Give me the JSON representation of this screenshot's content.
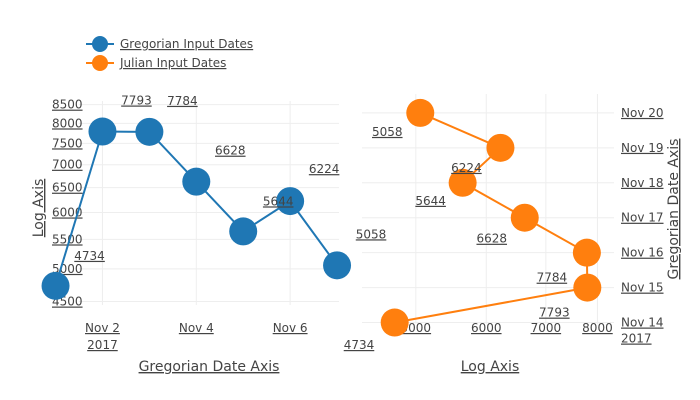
{
  "legend": {
    "items": [
      {
        "label": "Gregorian Input Dates",
        "color": "#1f77b4"
      },
      {
        "label": "Julian Input Dates",
        "color": "#ff7f0e"
      }
    ]
  },
  "chart_data": [
    {
      "type": "line",
      "xlabel": "Gregorian Date Axis",
      "ylabel": "Log Axis",
      "x_scale": "date",
      "y_scale": "log",
      "x_range": [
        "2017-11-01 12:00",
        "2017-11-07 01:00"
      ],
      "y_range": [
        4450,
        8600
      ],
      "x_ticks": [
        {
          "value": "2017-11-02",
          "label": "Nov 2",
          "label2": "2017"
        },
        {
          "value": "2017-11-04",
          "label": "Nov 4"
        },
        {
          "value": "2017-11-06",
          "label": "Nov 6"
        }
      ],
      "y_ticks": [
        4500,
        5000,
        5500,
        6000,
        6500,
        7000,
        7500,
        8000,
        8500
      ],
      "grid": true,
      "series": [
        {
          "name": "Gregorian Input Dates",
          "color": "#1f77b4",
          "x": [
            "2017-11-01",
            "2017-11-02",
            "2017-11-03",
            "2017-11-04",
            "2017-11-05",
            "2017-11-06",
            "2017-11-07"
          ],
          "y": [
            4734,
            7793,
            7784,
            6628,
            5644,
            6224,
            5058
          ]
        }
      ]
    },
    {
      "type": "line",
      "xlabel": "Log Axis",
      "ylabel": "Gregorian Date Axis",
      "x_scale": "log",
      "y_scale": "date",
      "y_side": "right",
      "x_range": [
        4350,
        8350
      ],
      "y_range": [
        "2017-11-13 23:00",
        "2017-11-20 13:00"
      ],
      "x_ticks": [
        5000,
        6000,
        7000,
        8000
      ],
      "y_ticks": [
        {
          "value": "2017-11-14",
          "label": "Nov 14",
          "label2": "2017"
        },
        {
          "value": "2017-11-15",
          "label": "Nov 15"
        },
        {
          "value": "2017-11-16",
          "label": "Nov 16"
        },
        {
          "value": "2017-11-17",
          "label": "Nov 17"
        },
        {
          "value": "2017-11-18",
          "label": "Nov 18"
        },
        {
          "value": "2017-11-19",
          "label": "Nov 19"
        },
        {
          "value": "2017-11-20",
          "label": "Nov 20"
        }
      ],
      "grid": true,
      "series": [
        {
          "name": "Julian Input Dates",
          "color": "#ff7f0e",
          "x": [
            4734,
            7793,
            7784,
            6628,
            5644,
            6224,
            5058
          ],
          "y": [
            "2017-11-14",
            "2017-11-15",
            "2017-11-16",
            "2017-11-17",
            "2017-11-18",
            "2017-11-19",
            "2017-11-20"
          ]
        }
      ]
    }
  ],
  "annotations": {
    "left": [
      "4734",
      "7793",
      "7784",
      "6628",
      "5644",
      "6224",
      "5058"
    ],
    "right": [
      "7793",
      "7784",
      "6628",
      "5644",
      "6224",
      "5058"
    ]
  }
}
